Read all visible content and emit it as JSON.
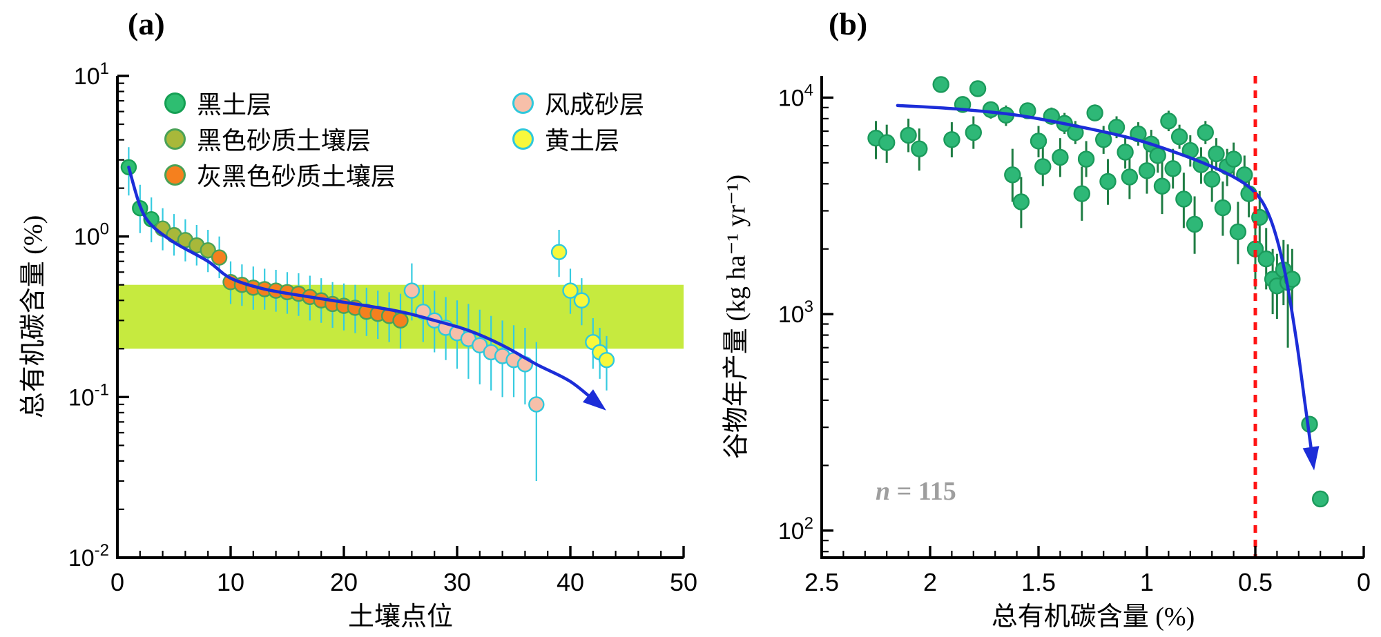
{
  "chart_data": [
    {
      "id": "a",
      "type": "scatter",
      "title": "(a)",
      "xlabel": "土壤点位",
      "ylabel": "总有机碳含量 (%)",
      "xlim": [
        0,
        50
      ],
      "ylim": [
        0.01,
        10
      ],
      "ylog": true,
      "x_minor_step": 2,
      "x_ticks": [
        {
          "v": 0,
          "label": "0"
        },
        {
          "v": 10,
          "label": "10"
        },
        {
          "v": 20,
          "label": "20"
        },
        {
          "v": 30,
          "label": "30"
        },
        {
          "v": 40,
          "label": "40"
        },
        {
          "v": 50,
          "label": "50"
        }
      ],
      "y_ticks": [
        {
          "v": 10,
          "base": "10",
          "exp": "1"
        },
        {
          "v": 1,
          "base": "10",
          "exp": "0"
        },
        {
          "v": 0.1,
          "base": "10",
          "exp": "-1"
        },
        {
          "v": 0.01,
          "base": "10",
          "exp": "-2"
        }
      ],
      "band": {
        "y1": 0.2,
        "y2": 0.5,
        "color": "#c6ea3f"
      },
      "curve": {
        "color": "#1c2dd8",
        "arrow": true,
        "points": [
          [
            1,
            2.7
          ],
          [
            2,
            1.55
          ],
          [
            3,
            1.18
          ],
          [
            5,
            0.92
          ],
          [
            8,
            0.7
          ],
          [
            10,
            0.55
          ],
          [
            13,
            0.47
          ],
          [
            17,
            0.42
          ],
          [
            21,
            0.38
          ],
          [
            25,
            0.34
          ],
          [
            28,
            0.3
          ],
          [
            31,
            0.26
          ],
          [
            34,
            0.21
          ],
          [
            37,
            0.16
          ],
          [
            40,
            0.125
          ],
          [
            42.5,
            0.09
          ]
        ]
      },
      "series": [
        {
          "name": "黑土层",
          "fill": "#2ebe71",
          "stroke": "#15a054",
          "error_color": "#35cbe0",
          "points": [
            [
              1,
              2.7,
              1.8,
              3.6
            ],
            [
              2,
              1.5,
              1.05,
              2.1
            ],
            [
              3,
              1.28,
              0.92,
              1.75
            ]
          ]
        },
        {
          "name": "黑色砂质土壤层",
          "fill": "#a8b83a",
          "stroke": "#4aa257",
          "error_color": "#35cbe0",
          "points": [
            [
              4,
              1.12,
              0.82,
              1.5
            ],
            [
              5,
              1.02,
              0.76,
              1.38
            ],
            [
              6,
              0.95,
              0.7,
              1.28
            ],
            [
              7,
              0.88,
              0.66,
              1.18
            ],
            [
              8,
              0.82,
              0.6,
              1.1
            ]
          ]
        },
        {
          "name": "灰黑色砂质土壤层",
          "fill": "#f5801e",
          "stroke": "#4aa257",
          "error_color": "#35cbe0",
          "points": [
            [
              9,
              0.74,
              0.55,
              1.0
            ],
            [
              10,
              0.52,
              0.38,
              0.7
            ],
            [
              11,
              0.5,
              0.37,
              0.67
            ],
            [
              12,
              0.48,
              0.35,
              0.65
            ],
            [
              13,
              0.47,
              0.35,
              0.63
            ],
            [
              14,
              0.46,
              0.34,
              0.62
            ],
            [
              15,
              0.45,
              0.33,
              0.6
            ],
            [
              16,
              0.44,
              0.32,
              0.59
            ],
            [
              17,
              0.42,
              0.3,
              0.57
            ],
            [
              18,
              0.4,
              0.29,
              0.55
            ],
            [
              19,
              0.38,
              0.27,
              0.52
            ],
            [
              20,
              0.37,
              0.26,
              0.51
            ],
            [
              21,
              0.36,
              0.25,
              0.5
            ],
            [
              22,
              0.34,
              0.24,
              0.48
            ],
            [
              23,
              0.33,
              0.23,
              0.46
            ],
            [
              24,
              0.32,
              0.22,
              0.45
            ],
            [
              25,
              0.3,
              0.2,
              0.44
            ]
          ]
        },
        {
          "name": "风成砂层",
          "fill": "#f7bfa9",
          "stroke": "#2fc8dc",
          "error_color": "#35cbe0",
          "points": [
            [
              26,
              0.46,
              0.3,
              0.68
            ],
            [
              27,
              0.34,
              0.22,
              0.5
            ],
            [
              28,
              0.3,
              0.19,
              0.46
            ],
            [
              29,
              0.27,
              0.17,
              0.42
            ],
            [
              30,
              0.25,
              0.15,
              0.4
            ],
            [
              31,
              0.23,
              0.13,
              0.38
            ],
            [
              32,
              0.21,
              0.12,
              0.35
            ],
            [
              33,
              0.19,
              0.11,
              0.32
            ],
            [
              34,
              0.18,
              0.1,
              0.3
            ],
            [
              35,
              0.17,
              0.1,
              0.28
            ],
            [
              36,
              0.16,
              0.09,
              0.27
            ],
            [
              37,
              0.09,
              0.03,
              0.22
            ]
          ]
        },
        {
          "name": "黄土层",
          "fill": "#f8f83c",
          "stroke": "#2fc8dc",
          "error_color": "#35cbe0",
          "points": [
            [
              39,
              0.8,
              0.56,
              1.1
            ],
            [
              40,
              0.46,
              0.33,
              0.63
            ],
            [
              41,
              0.4,
              0.28,
              0.55
            ],
            [
              42,
              0.22,
              0.15,
              0.31
            ],
            [
              42.6,
              0.19,
              0.13,
              0.27
            ],
            [
              43.2,
              0.17,
              0.11,
              0.24
            ]
          ]
        }
      ]
    },
    {
      "id": "b",
      "type": "scatter",
      "title": "(b)",
      "xlabel": "总有机碳含量 (%)",
      "ylabel": "谷物年产量 (kg ha⁻¹ yr⁻¹)",
      "xlim": [
        2.5,
        0
      ],
      "ylim": [
        75,
        12600
      ],
      "ylog": true,
      "x_minor_step": 0.1,
      "x_ticks": [
        {
          "v": 2.5,
          "label": "2.5"
        },
        {
          "v": 2,
          "label": "2"
        },
        {
          "v": 1.5,
          "label": "1.5"
        },
        {
          "v": 1,
          "label": "1"
        },
        {
          "v": 0.5,
          "label": "0.5"
        },
        {
          "v": 0,
          "label": "0"
        }
      ],
      "y_ticks": [
        {
          "v": 10000,
          "base": "10",
          "exp": "4"
        },
        {
          "v": 1000,
          "base": "10",
          "exp": "3"
        },
        {
          "v": 100,
          "base": "10",
          "exp": "2"
        }
      ],
      "vline": {
        "x": 0.5,
        "color": "#ff1414"
      },
      "annotation": {
        "var": "n",
        "rest": " = 115",
        "color": "#9e9e9e"
      },
      "curve": {
        "color": "#1c2dd8",
        "arrow": true,
        "points": [
          [
            2.15,
            9200
          ],
          [
            1.9,
            8900
          ],
          [
            1.6,
            8300
          ],
          [
            1.3,
            7300
          ],
          [
            1.05,
            6400
          ],
          [
            0.85,
            5500
          ],
          [
            0.7,
            4800
          ],
          [
            0.6,
            4300
          ],
          [
            0.52,
            3800
          ],
          [
            0.46,
            3200
          ],
          [
            0.41,
            2400
          ],
          [
            0.36,
            1500
          ],
          [
            0.31,
            750
          ],
          [
            0.27,
            380
          ],
          [
            0.235,
            210
          ]
        ]
      },
      "series": [
        {
          "name": "谷物年产量",
          "fill": "#2eb877",
          "stroke": "#1b9a5b",
          "error_color": "#1f7d44",
          "points": [
            [
              2.25,
              6500,
              5200,
              7800
            ],
            [
              2.2,
              6200,
              5000,
              7500
            ],
            [
              2.1,
              6700,
              5600,
              8000
            ],
            [
              2.05,
              5800,
              4600,
              7200
            ],
            [
              1.95,
              11500,
              11000,
              12000
            ],
            [
              1.9,
              6400,
              5300,
              7700
            ],
            [
              1.85,
              9300,
              8800,
              9800
            ],
            [
              1.8,
              6900,
              5800,
              8200
            ],
            [
              1.78,
              11000,
              10500,
              11500
            ],
            [
              1.72,
              8800,
              8000,
              9600
            ],
            [
              1.65,
              8300,
              7400,
              9200
            ],
            [
              1.62,
              4400,
              3300,
              5800
            ],
            [
              1.58,
              3300,
              2500,
              4300
            ],
            [
              1.55,
              8700,
              8000,
              9400
            ],
            [
              1.5,
              6300,
              5300,
              7400
            ],
            [
              1.48,
              4800,
              3900,
              5900
            ],
            [
              1.44,
              8200,
              7500,
              9000
            ],
            [
              1.4,
              5300,
              4300,
              6500
            ],
            [
              1.38,
              7600,
              6800,
              8500
            ],
            [
              1.33,
              6900,
              6100,
              7800
            ],
            [
              1.3,
              3600,
              2700,
              4800
            ],
            [
              1.28,
              5200,
              4300,
              6300
            ],
            [
              1.24,
              8500,
              7800,
              9300
            ],
            [
              1.2,
              6400,
              5500,
              7400
            ],
            [
              1.18,
              4100,
              3200,
              5200
            ],
            [
              1.14,
              7300,
              6500,
              8200
            ],
            [
              1.1,
              5600,
              4700,
              6700
            ],
            [
              1.08,
              4300,
              3400,
              5400
            ],
            [
              1.04,
              6800,
              6000,
              7700
            ],
            [
              1.0,
              4600,
              3600,
              5800
            ],
            [
              0.98,
              6100,
              5200,
              7100
            ],
            [
              0.95,
              5400,
              4500,
              6400
            ],
            [
              0.93,
              3900,
              2900,
              5100
            ],
            [
              0.9,
              7800,
              7000,
              8700
            ],
            [
              0.88,
              4700,
              3800,
              5800
            ],
            [
              0.85,
              6600,
              5800,
              7500
            ],
            [
              0.83,
              3400,
              2500,
              4500
            ],
            [
              0.8,
              5700,
              4800,
              6700
            ],
            [
              0.78,
              2600,
              1900,
              3500
            ],
            [
              0.75,
              4900,
              4000,
              5900
            ],
            [
              0.73,
              6900,
              6100,
              7800
            ],
            [
              0.7,
              4200,
              3300,
              5300
            ],
            [
              0.68,
              5500,
              4600,
              6500
            ],
            [
              0.65,
              3100,
              2300,
              4100
            ],
            [
              0.63,
              4800,
              3900,
              5800
            ],
            [
              0.6,
              5200,
              4300,
              6200
            ],
            [
              0.58,
              2400,
              1700,
              3300
            ],
            [
              0.55,
              4400,
              3500,
              5400
            ],
            [
              0.53,
              3600,
              2800,
              4600
            ],
            [
              0.5,
              2000,
              1300,
              3000
            ],
            [
              0.48,
              2800,
              2100,
              3700
            ],
            [
              0.45,
              1800,
              1300,
              2500
            ],
            [
              0.42,
              1450,
              1000,
              2000
            ],
            [
              0.4,
              1350,
              950,
              1900
            ],
            [
              0.37,
              1600,
              1100,
              2200
            ],
            [
              0.35,
              1400,
              700,
              2100
            ],
            [
              0.33,
              1450,
              1000,
              2000
            ],
            [
              0.25,
              310,
              310,
              310
            ],
            [
              0.2,
              140,
              140,
              140
            ]
          ]
        }
      ]
    }
  ]
}
